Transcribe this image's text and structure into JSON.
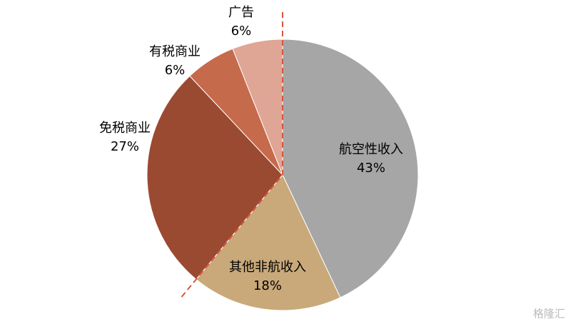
{
  "chart_data": {
    "type": "pie",
    "categories": [
      "航空性收入",
      "其他非航收入",
      "免税商业",
      "有税商业",
      "广告"
    ],
    "values": [
      43,
      18,
      27,
      6,
      6
    ],
    "value_labels": [
      "43%",
      "18%",
      "27%",
      "6%",
      "6%"
    ],
    "colors": [
      "#a6a6a6",
      "#c9a97a",
      "#9b4a32",
      "#c66a4c",
      "#dfa595"
    ]
  },
  "watermark": "格隆汇"
}
